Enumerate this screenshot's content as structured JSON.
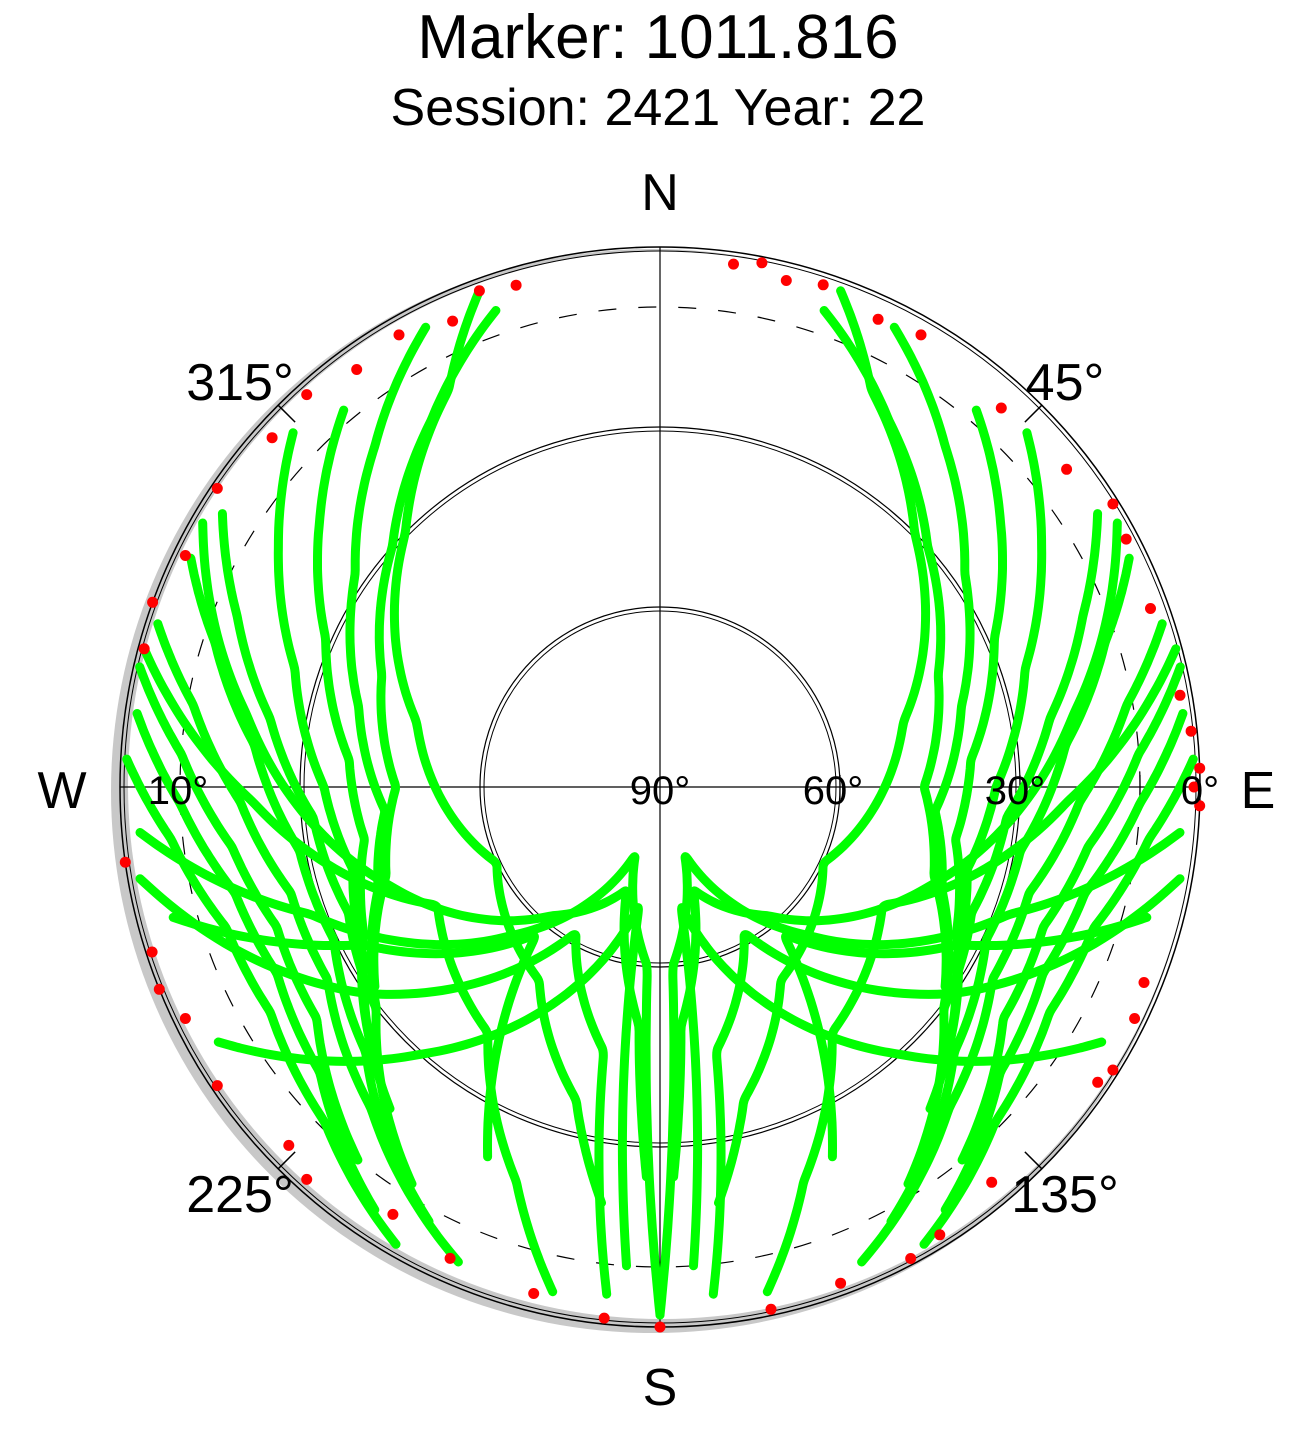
{
  "header": {
    "title": "Marker: 1011.816",
    "subtitle": "Session: 2421 Year: 22"
  },
  "chart_data": {
    "type": "scatter",
    "projection": "polar skyplot (azimuth / elevation)",
    "directions": {
      "north": "N",
      "east": "E",
      "south": "S",
      "west": "W"
    },
    "azimuth_labels": [
      {
        "az": 45,
        "text": "45°"
      },
      {
        "az": 135,
        "text": "135°"
      },
      {
        "az": 225,
        "text": "225°"
      },
      {
        "az": 315,
        "text": "315°"
      }
    ],
    "elevation_labels": [
      {
        "el": 0,
        "text": "0°"
      },
      {
        "el": 30,
        "text": "30°"
      },
      {
        "el": 60,
        "text": "60°"
      },
      {
        "el": 90,
        "text": "90°"
      },
      {
        "el": 10,
        "text": "10°"
      }
    ],
    "elevation_rings": [
      30,
      60
    ],
    "cutoff_ring_dashed": 10,
    "colors": {
      "track": "#00ff00",
      "low_elevation_point": "#ff0000",
      "horizon_mask": "#c8c8c8",
      "grid": "#000000"
    },
    "tracks_ascending_north": [
      {
        "az": [
          27,
          40,
          55,
          75,
          95,
          110,
          128
        ],
        "el": [
          4,
          16,
          28,
          38,
          44,
          40,
          30
        ]
      },
      {
        "az": [
          19,
          32,
          48,
          68,
          90,
          108,
          125
        ],
        "el": [
          6,
          18,
          30,
          40,
          46,
          42,
          32
        ]
      },
      {
        "az": [
          40,
          52,
          66,
          85,
          100,
          116,
          134
        ],
        "el": [
          8,
          18,
          29,
          38,
          40,
          35,
          24
        ]
      },
      {
        "az": [
          46,
          58,
          72,
          90,
          105,
          120,
          140
        ],
        "el": [
          5,
          15,
          26,
          34,
          37,
          33,
          20
        ]
      },
      {
        "az": [
          58,
          68,
          80,
          95,
          112,
          128,
          148
        ],
        "el": [
          4,
          14,
          24,
          32,
          34,
          30,
          12
        ]
      },
      {
        "az": [
          64,
          72,
          84,
          100,
          115,
          132,
          152
        ],
        "el": [
          3,
          12,
          22,
          29,
          30,
          24,
          8
        ]
      },
      {
        "az": [
          72,
          80,
          92,
          106,
          120,
          138,
          157
        ],
        "el": [
          2,
          11,
          20,
          26,
          26,
          18,
          4
        ]
      },
      {
        "az": [
          77,
          86,
          98,
          110,
          124,
          141
        ],
        "el": [
          1,
          10,
          18,
          22,
          21,
          10
        ]
      },
      {
        "az": [
          82,
          92,
          104,
          116,
          130,
          146
        ],
        "el": [
          2,
          10,
          17,
          19,
          16,
          5
        ]
      },
      {
        "az": [
          87,
          96,
          108,
          120,
          135,
          150
        ],
        "el": [
          1,
          8,
          14,
          15,
          11,
          2
        ]
      },
      {
        "az": [
          333,
          320,
          305,
          285,
          265,
          250,
          232
        ],
        "el": [
          4,
          16,
          28,
          38,
          44,
          40,
          30
        ]
      },
      {
        "az": [
          341,
          328,
          312,
          292,
          270,
          252,
          235
        ],
        "el": [
          6,
          18,
          30,
          40,
          46,
          42,
          32
        ]
      },
      {
        "az": [
          320,
          308,
          294,
          275,
          260,
          244,
          226
        ],
        "el": [
          8,
          18,
          29,
          38,
          40,
          35,
          24
        ]
      },
      {
        "az": [
          314,
          302,
          288,
          270,
          255,
          240,
          220
        ],
        "el": [
          5,
          15,
          26,
          34,
          37,
          33,
          20
        ]
      },
      {
        "az": [
          302,
          292,
          280,
          265,
          248,
          232,
          212
        ],
        "el": [
          4,
          14,
          24,
          32,
          34,
          30,
          12
        ]
      },
      {
        "az": [
          296,
          288,
          276,
          260,
          245,
          228,
          208
        ],
        "el": [
          3,
          12,
          22,
          29,
          30,
          24,
          8
        ]
      },
      {
        "az": [
          288,
          280,
          268,
          254,
          240,
          222,
          203
        ],
        "el": [
          2,
          11,
          20,
          26,
          26,
          18,
          4
        ]
      },
      {
        "az": [
          283,
          274,
          262,
          250,
          236,
          219
        ],
        "el": [
          1,
          10,
          18,
          22,
          21,
          10
        ]
      },
      {
        "az": [
          278,
          268,
          256,
          244,
          230,
          214
        ],
        "el": [
          2,
          10,
          17,
          19,
          16,
          5
        ]
      },
      {
        "az": [
          273,
          264,
          252,
          240,
          225,
          210
        ],
        "el": [
          1,
          8,
          14,
          15,
          11,
          2
        ]
      }
    ],
    "tracks_high_arc": [
      {
        "az": [
          20,
          28,
          45,
          75,
          115,
          148,
          165,
          172
        ],
        "el": [
          2,
          15,
          30,
          48,
          60,
          52,
          36,
          20
        ]
      },
      {
        "az": [
          340,
          332,
          315,
          285,
          245,
          212,
          195,
          188
        ],
        "el": [
          2,
          15,
          30,
          48,
          60,
          52,
          36,
          20
        ]
      },
      {
        "az": [
          60,
          80,
          110,
          140,
          162,
          175,
          178
        ],
        "el": [
          2,
          20,
          42,
          62,
          72,
          50,
          25
        ]
      },
      {
        "az": [
          300,
          280,
          250,
          220,
          198,
          185,
          182
        ],
        "el": [
          2,
          20,
          42,
          62,
          72,
          50,
          25
        ]
      },
      {
        "az": [
          95,
          110,
          135,
          160,
          176,
          180
        ],
        "el": [
          3,
          28,
          55,
          78,
          60,
          2
        ]
      },
      {
        "az": [
          265,
          250,
          225,
          200,
          184,
          180
        ],
        "el": [
          3,
          28,
          55,
          78,
          60,
          2
        ]
      },
      {
        "az": [
          120,
          138,
          158,
          170,
          176
        ],
        "el": [
          5,
          30,
          55,
          70,
          10
        ]
      },
      {
        "az": [
          240,
          222,
          202,
          190,
          184
        ],
        "el": [
          5,
          30,
          55,
          70,
          10
        ]
      },
      {
        "az": [
          100,
          125,
          150,
          168,
          174
        ],
        "el": [
          2,
          30,
          62,
          45,
          5
        ]
      },
      {
        "az": [
          260,
          235,
          210,
          192,
          186
        ],
        "el": [
          2,
          30,
          62,
          45,
          5
        ]
      },
      {
        "az": [
          75,
          92,
          118,
          145,
          160,
          168
        ],
        "el": [
          1,
          22,
          48,
          40,
          20,
          4
        ]
      },
      {
        "az": [
          285,
          268,
          242,
          215,
          200,
          192
        ],
        "el": [
          1,
          22,
          48,
          40,
          20,
          4
        ]
      },
      {
        "az": [
          105,
          118,
          140,
          155
        ],
        "el": [
          6,
          34,
          58,
          22
        ]
      },
      {
        "az": [
          255,
          242,
          220,
          205
        ],
        "el": [
          6,
          34,
          58,
          22
        ]
      }
    ],
    "low_elevation_points": [
      {
        "az": 8,
        "el": 2
      },
      {
        "az": 11,
        "el": 1
      },
      {
        "az": 14,
        "el": 3
      },
      {
        "az": 18,
        "el": 2
      },
      {
        "az": 25,
        "el": 4
      },
      {
        "az": 30,
        "el": 3
      },
      {
        "az": 42,
        "el": 5
      },
      {
        "az": 52,
        "el": 4
      },
      {
        "az": 58,
        "el": 1
      },
      {
        "az": 62,
        "el": 2
      },
      {
        "az": 70,
        "el": 3
      },
      {
        "az": 80,
        "el": 2
      },
      {
        "az": 84,
        "el": 1
      },
      {
        "az": 88,
        "el": 0
      },
      {
        "az": 90,
        "el": 1
      },
      {
        "az": 92,
        "el": 0
      },
      {
        "az": 112,
        "el": 3
      },
      {
        "az": 116,
        "el": 2
      },
      {
        "az": 122,
        "el": 1
      },
      {
        "az": 124,
        "el": 2
      },
      {
        "az": 140,
        "el": 4
      },
      {
        "az": 148,
        "el": 2
      },
      {
        "az": 152,
        "el": 1
      },
      {
        "az": 160,
        "el": 2
      },
      {
        "az": 168,
        "el": 1
      },
      {
        "az": 180,
        "el": 0
      },
      {
        "az": 186,
        "el": 1
      },
      {
        "az": 194,
        "el": 3
      },
      {
        "az": 204,
        "el": 4
      },
      {
        "az": 212,
        "el": 6
      },
      {
        "az": 222,
        "el": 2
      },
      {
        "az": 226,
        "el": 4
      },
      {
        "az": 236,
        "el": 1
      },
      {
        "az": 244,
        "el": 2
      },
      {
        "az": 248,
        "el": 0
      },
      {
        "az": 252,
        "el": 1
      },
      {
        "az": 262,
        "el": 0
      },
      {
        "az": 285,
        "el": 1
      },
      {
        "az": 290,
        "el": 0
      },
      {
        "az": 296,
        "el": 2
      },
      {
        "az": 304,
        "el": 1
      },
      {
        "az": 312,
        "el": 3
      },
      {
        "az": 318,
        "el": 2
      },
      {
        "az": 324,
        "el": 4
      },
      {
        "az": 330,
        "el": 3
      },
      {
        "az": 336,
        "el": 5
      },
      {
        "az": 340,
        "el": 2
      },
      {
        "az": 344,
        "el": 3
      }
    ]
  }
}
